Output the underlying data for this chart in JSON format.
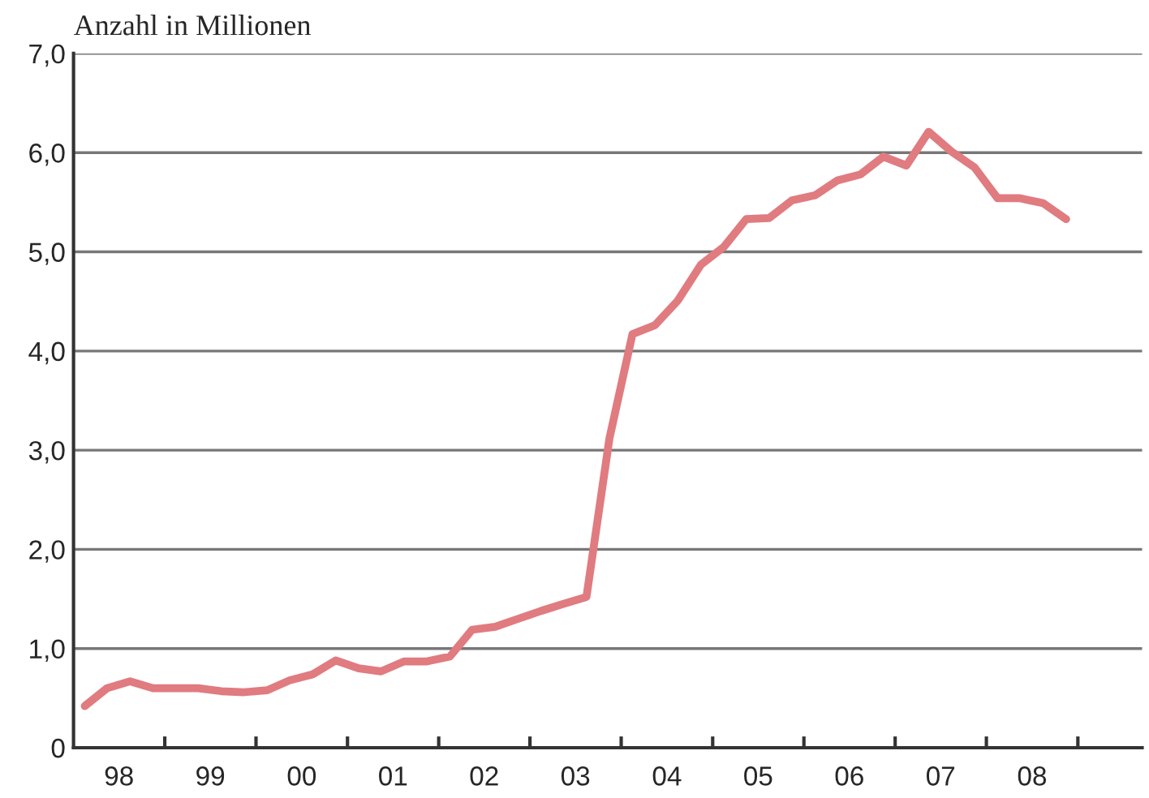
{
  "chart_data": {
    "type": "line",
    "ylabel": "Anzahl in Millionen",
    "x": [
      "1998-02-15",
      "1998-05-15",
      "1998-08-15",
      "1998-11-15",
      "1999-02-15",
      "1999-05-15",
      "1999-08-15",
      "1999-11-15",
      "2000-02-15",
      "2000-05-15",
      "2000-08-15",
      "2000-11-15",
      "2001-02-15",
      "2001-05-15",
      "2001-08-15",
      "2001-11-15",
      "2002-02-15",
      "2002-05-15",
      "2002-08-15",
      "2002-11-15",
      "2003-02-15",
      "2003-05-15",
      "2003-08-15",
      "2003-11-15",
      "2004-02-15",
      "2004-05-15",
      "2004-08-15",
      "2004-11-15",
      "2005-02-15",
      "2005-05-15",
      "2005-08-15",
      "2005-11-15",
      "2006-02-15",
      "2006-05-15",
      "2006-08-15",
      "2006-11-15",
      "2007-02-15",
      "2007-05-15",
      "2007-08-15",
      "2007-11-15",
      "2008-02-15",
      "2008-05-15",
      "2008-08-15",
      "2008-11-15"
    ],
    "series": [
      {
        "color": "#e07b80",
        "values": [
          0.42,
          0.6,
          0.67,
          0.6,
          0.6,
          0.6,
          0.57,
          0.56,
          0.58,
          0.68,
          0.74,
          0.88,
          0.8,
          0.77,
          0.87,
          0.87,
          0.92,
          1.19,
          1.22,
          1.3,
          1.38,
          1.45,
          1.52,
          3.12,
          4.17,
          4.26,
          4.51,
          4.87,
          5.05,
          5.33,
          5.34,
          5.52,
          5.57,
          5.72,
          5.78,
          5.96,
          5.87,
          6.21,
          6.01,
          5.85,
          5.54,
          5.54,
          5.49,
          5.33
        ]
      }
    ],
    "xlim": [
      "1998-01-01",
      "2009-09-15"
    ],
    "xticks": [
      {
        "value": "1999-01-01",
        "label": null
      },
      {
        "value": "2000-01-01",
        "label": null
      },
      {
        "value": "2001-01-01",
        "label": null
      },
      {
        "value": "2002-01-01",
        "label": null
      },
      {
        "value": "2003-01-01",
        "label": null
      },
      {
        "value": "2004-01-01",
        "label": null
      },
      {
        "value": "2005-01-01",
        "label": null
      },
      {
        "value": "2006-01-01",
        "label": null
      },
      {
        "value": "2007-01-01",
        "label": null
      },
      {
        "value": "2008-01-01",
        "label": null
      },
      {
        "value": "2009-01-01",
        "label": null
      },
      {
        "value": "1998-07-02",
        "label": "98"
      },
      {
        "value": "1999-07-02",
        "label": "99"
      },
      {
        "value": "2000-07-02",
        "label": "00"
      },
      {
        "value": "2001-07-02",
        "label": "01"
      },
      {
        "value": "2002-07-02",
        "label": "02"
      },
      {
        "value": "2003-07-02",
        "label": "03"
      },
      {
        "value": "2004-07-02",
        "label": "04"
      },
      {
        "value": "2005-07-02",
        "label": "05"
      },
      {
        "value": "2006-07-02",
        "label": "06"
      },
      {
        "value": "2007-07-02",
        "label": "07"
      },
      {
        "value": "2008-07-02",
        "label": "08"
      }
    ],
    "ylim": [
      0,
      7
    ],
    "yticks": [
      0,
      {
        "value": 1,
        "label": "1,0"
      },
      {
        "value": 2,
        "label": "2,0"
      },
      {
        "value": 3,
        "label": "3,0"
      },
      {
        "value": 4,
        "label": "4,0"
      },
      {
        "value": 5,
        "label": "5,0"
      },
      {
        "value": 6,
        "label": "6,0"
      },
      {
        "value": 7,
        "label": "7,0"
      }
    ],
    "grid": "y",
    "line_style": "solid",
    "marker": "none"
  }
}
